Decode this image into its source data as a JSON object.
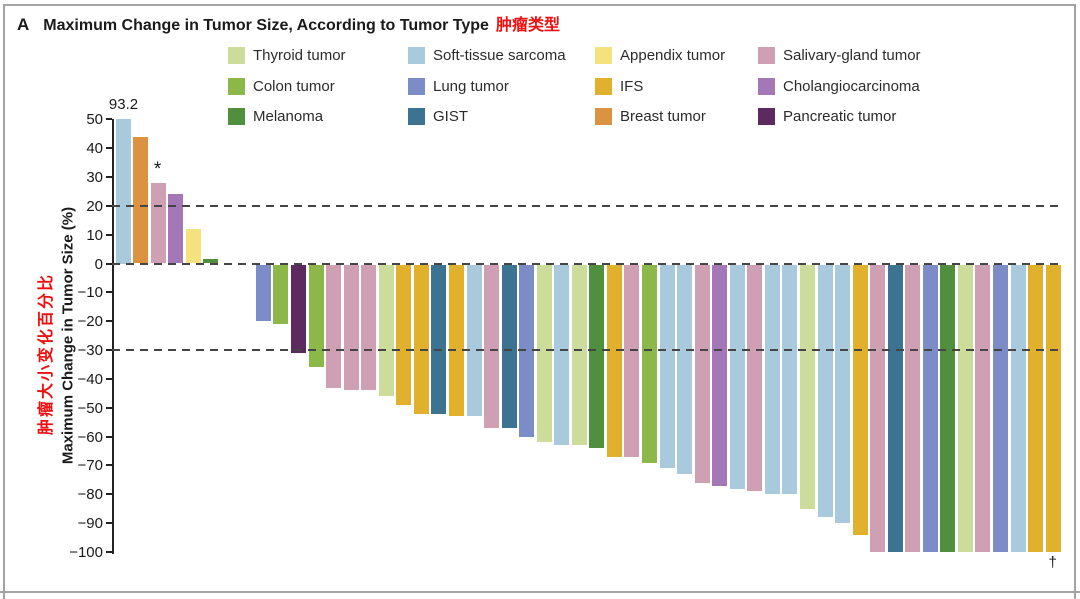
{
  "title": {
    "panel_letter": "A",
    "text": "Maximum Change in Tumor Size, According to Tumor Type",
    "text_cn": "肿瘤类型"
  },
  "y_axis": {
    "label_en": "Maximum Change in Tumor Size (%)",
    "label_cn": "肿瘤大小变化百分比",
    "ticks": [
      50,
      40,
      30,
      20,
      10,
      0,
      -10,
      -20,
      -30,
      -40,
      -50,
      -60,
      -70,
      -80,
      -90,
      -100
    ]
  },
  "colors": {
    "thyroid": "#cbdc9b",
    "colon": "#8cb84a",
    "melanoma": "#4f8f3e",
    "sts": "#a9cadc",
    "lung": "#7b8cc6",
    "gist": "#3b7391",
    "appendix": "#f4e27e",
    "ifs": "#e1b02c",
    "breast": "#dc9341",
    "salivary": "#cf9fb3",
    "cholangio": "#a478b6",
    "pancreatic": "#5d2a60"
  },
  "legend": {
    "columns": [
      [
        {
          "key": "thyroid",
          "label": "Thyroid tumor"
        },
        {
          "key": "colon",
          "label": "Colon tumor"
        },
        {
          "key": "melanoma",
          "label": "Melanoma"
        }
      ],
      [
        {
          "key": "sts",
          "label": "Soft-tissue sarcoma"
        },
        {
          "key": "lung",
          "label": "Lung tumor"
        },
        {
          "key": "gist",
          "label": "GIST"
        }
      ],
      [
        {
          "key": "appendix",
          "label": "Appendix tumor"
        },
        {
          "key": "ifs",
          "label": "IFS"
        },
        {
          "key": "breast",
          "label": "Breast tumor"
        }
      ],
      [
        {
          "key": "salivary",
          "label": "Salivary-gland tumor"
        },
        {
          "key": "cholangio",
          "label": "Cholangiocarcinoma"
        },
        {
          "key": "pancreatic",
          "label": "Pancreatic tumor"
        }
      ]
    ]
  },
  "chart_data": {
    "type": "bar",
    "subtype": "waterfall",
    "title": "Maximum Change in Tumor Size, According to Tumor Type",
    "ylabel": "Maximum Change in Tumor Size (%)",
    "ylim": [
      -100,
      50
    ],
    "grid": false,
    "reference_lines": [
      20,
      0,
      -30
    ],
    "gap_after_bar_index": 5,
    "gap_slots": 2,
    "bars": [
      {
        "tumor": "sts",
        "value": 93.2,
        "capped_at": 50,
        "label": "93.2"
      },
      {
        "tumor": "breast",
        "value": 44
      },
      {
        "tumor": "salivary",
        "value": 28,
        "mark": "*"
      },
      {
        "tumor": "cholangio",
        "value": 24
      },
      {
        "tumor": "appendix",
        "value": 12
      },
      {
        "tumor": "melanoma",
        "value": 1.5
      },
      {
        "tumor": "lung",
        "value": -20
      },
      {
        "tumor": "colon",
        "value": -21
      },
      {
        "tumor": "pancreatic",
        "value": -31
      },
      {
        "tumor": "colon",
        "value": -36
      },
      {
        "tumor": "salivary",
        "value": -43
      },
      {
        "tumor": "salivary",
        "value": -44
      },
      {
        "tumor": "salivary",
        "value": -44
      },
      {
        "tumor": "thyroid",
        "value": -46
      },
      {
        "tumor": "ifs",
        "value": -49
      },
      {
        "tumor": "ifs",
        "value": -52
      },
      {
        "tumor": "gist",
        "value": -52
      },
      {
        "tumor": "ifs",
        "value": -53
      },
      {
        "tumor": "sts",
        "value": -53
      },
      {
        "tumor": "salivary",
        "value": -57
      },
      {
        "tumor": "gist",
        "value": -57
      },
      {
        "tumor": "lung",
        "value": -60
      },
      {
        "tumor": "thyroid",
        "value": -62
      },
      {
        "tumor": "sts",
        "value": -63
      },
      {
        "tumor": "thyroid",
        "value": -63
      },
      {
        "tumor": "melanoma",
        "value": -64
      },
      {
        "tumor": "ifs",
        "value": -67
      },
      {
        "tumor": "salivary",
        "value": -67
      },
      {
        "tumor": "colon",
        "value": -69
      },
      {
        "tumor": "sts",
        "value": -71
      },
      {
        "tumor": "sts",
        "value": -73
      },
      {
        "tumor": "salivary",
        "value": -76
      },
      {
        "tumor": "cholangio",
        "value": -77
      },
      {
        "tumor": "sts",
        "value": -78
      },
      {
        "tumor": "salivary",
        "value": -79
      },
      {
        "tumor": "sts",
        "value": -80
      },
      {
        "tumor": "sts",
        "value": -80
      },
      {
        "tumor": "thyroid",
        "value": -85
      },
      {
        "tumor": "sts",
        "value": -88
      },
      {
        "tumor": "sts",
        "value": -90
      },
      {
        "tumor": "ifs",
        "value": -94
      },
      {
        "tumor": "salivary",
        "value": -100
      },
      {
        "tumor": "gist",
        "value": -100
      },
      {
        "tumor": "salivary",
        "value": -100
      },
      {
        "tumor": "lung",
        "value": -100
      },
      {
        "tumor": "melanoma",
        "value": -100
      },
      {
        "tumor": "thyroid",
        "value": -100
      },
      {
        "tumor": "salivary",
        "value": -100
      },
      {
        "tumor": "lung",
        "value": -100
      },
      {
        "tumor": "sts",
        "value": -100
      },
      {
        "tumor": "ifs",
        "value": -100
      },
      {
        "tumor": "ifs",
        "value": -100,
        "mark": "†"
      }
    ]
  }
}
